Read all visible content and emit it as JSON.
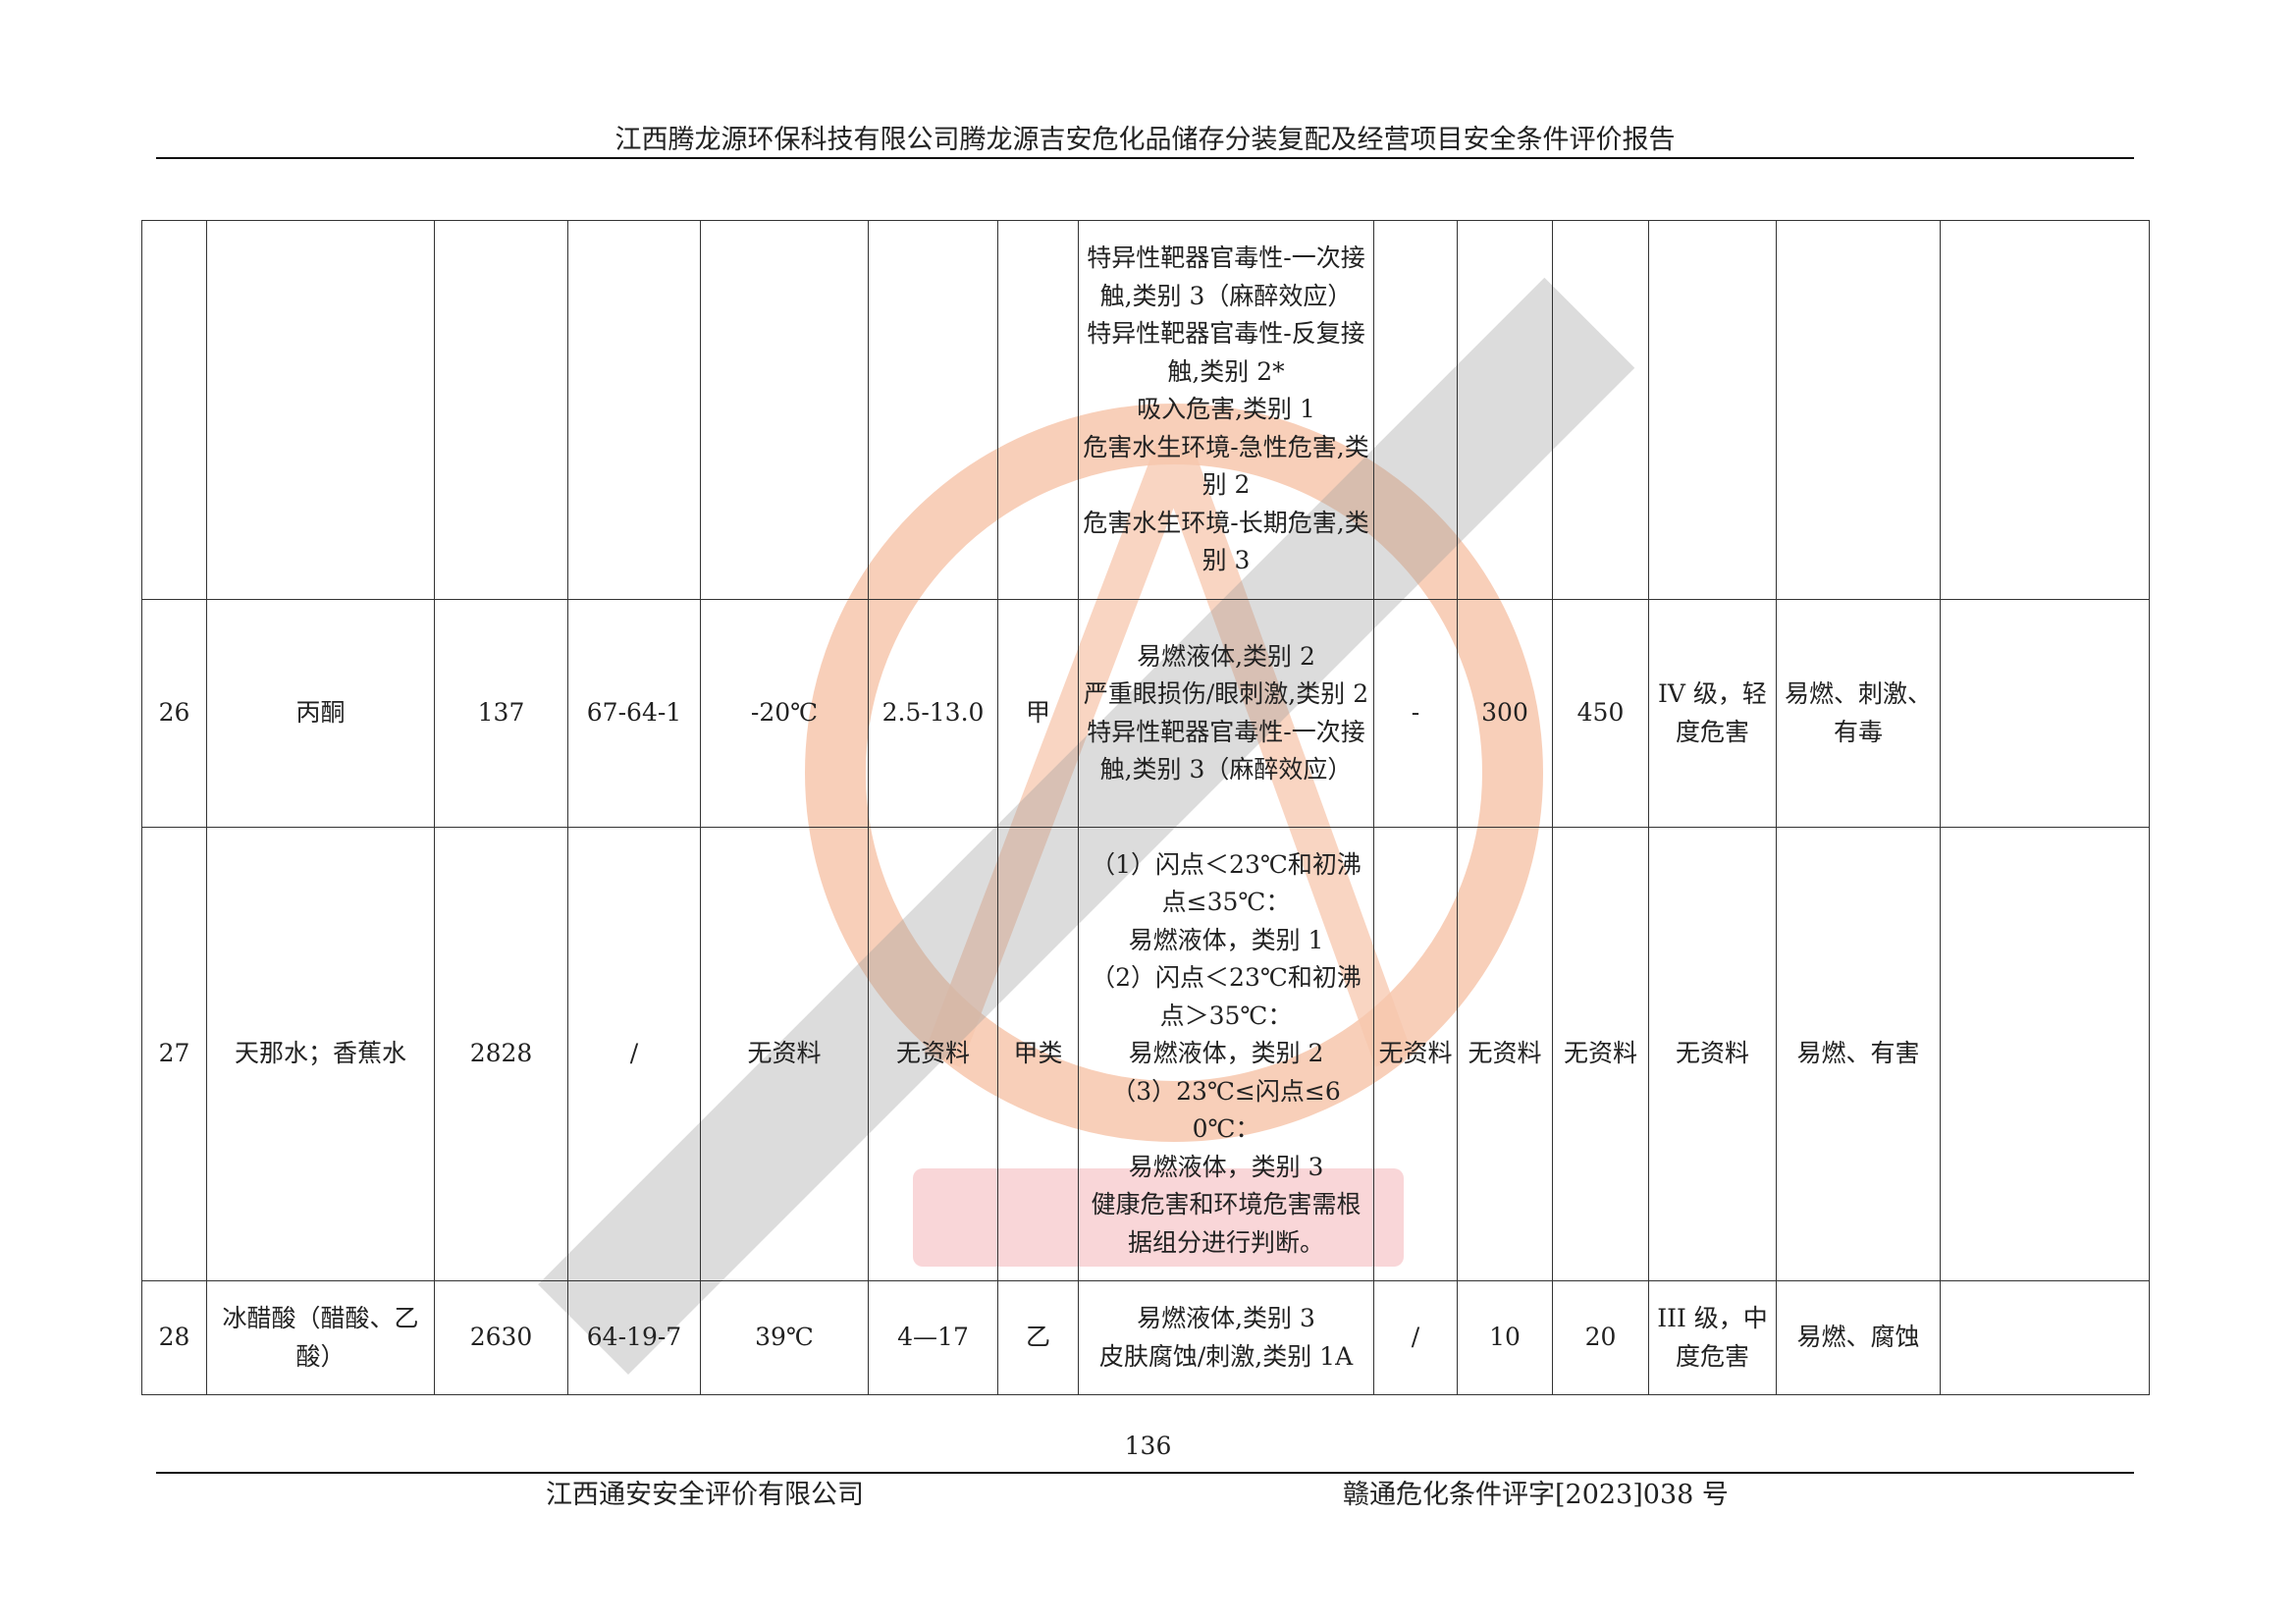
{
  "header": {
    "title": "江西腾龙源环保科技有限公司腾龙源吉安危化品储存分装复配及经营项目安全条件评价报告"
  },
  "watermark": {
    "text": "江西通安安全评价有限公司",
    "stamp": "江西通安",
    "colors": {
      "ring": "#f6c3a8",
      "text": "#9a9a9a",
      "stamp": "#f2a5a8"
    }
  },
  "table": {
    "rows": [
      {
        "no": "",
        "name": "",
        "un": "",
        "cas": "",
        "flash": "",
        "explosive": "",
        "fire_class": "",
        "hazard": "特异性靶器官毒性-一次接触,类别 3（麻醉效应）\n特异性靶器官毒性-反复接触,类别 2*\n吸入危害,类别 1\n危害水生环境-急性危害,类别 2\n危害水生环境-长期危害,类别 3",
        "c9": "",
        "c10": "",
        "c11": "",
        "c12": "",
        "c13": "",
        "c14": ""
      },
      {
        "no": "26",
        "name": "丙酮",
        "un": "137",
        "cas": "67-64-1",
        "flash": "-20℃",
        "explosive": "2.5-13.0",
        "fire_class": "甲",
        "hazard": "易燃液体,类别 2\n严重眼损伤/眼刺激,类别 2\n特异性靶器官毒性-一次接触,类别 3（麻醉效应）",
        "c9": "-",
        "c10": "300",
        "c11": "450",
        "c12": "IV 级，轻度危害",
        "c13": "易燃、刺激、有毒",
        "c14": ""
      },
      {
        "no": "27",
        "name": "天那水；香蕉水",
        "un": "2828",
        "cas": "/",
        "flash": "无资料",
        "explosive": "无资料",
        "fire_class": "甲类",
        "hazard": "（1）闪点＜23℃和初沸点≤35℃：\n易燃液体，类别 1\n（2）闪点＜23℃和初沸点＞35℃：\n易燃液体，类别 2\n（3）23℃≤闪点≤60℃：\n易燃液体，类别 3\n健康危害和环境危害需根据组分进行判断。",
        "c9": "无资料",
        "c10": "无资料",
        "c11": "无资料",
        "c12": "无资料",
        "c13": "易燃、有害",
        "c14": ""
      },
      {
        "no": "28",
        "name": "冰醋酸（醋酸、乙酸）",
        "un": "2630",
        "cas": "64-19-7",
        "flash": "39℃",
        "explosive": "4—17",
        "fire_class": "乙",
        "hazard": "易燃液体,类别 3\n皮肤腐蚀/刺激,类别 1A",
        "c9": "/",
        "c10": "10",
        "c11": "20",
        "c12": "III 级，中度危害",
        "c13": "易燃、腐蚀",
        "c14": ""
      }
    ]
  },
  "page_number": "136",
  "footer": {
    "left": "江西通安安全评价有限公司",
    "right": "赣通危化条件评字[2023]038 号"
  }
}
